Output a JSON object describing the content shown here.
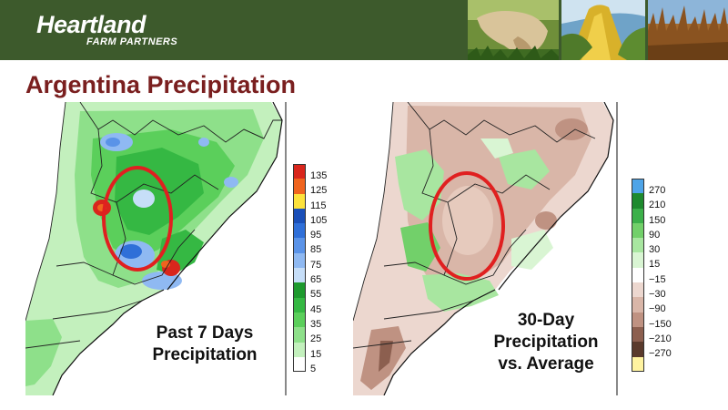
{
  "header": {
    "logo_main": "Heartland",
    "logo_sub": "FARM PARTNERS",
    "photos": [
      "cow-photo",
      "corn-photo",
      "soybean-photo"
    ]
  },
  "title": "Argentina Precipitation",
  "left_panel": {
    "caption_line1": "Past 7 Days",
    "caption_line2": "Precipitation",
    "legend": [
      {
        "label": "135",
        "color": "#d9261c"
      },
      {
        "label": "125",
        "color": "#f0641e"
      },
      {
        "label": "115",
        "color": "#fde23c"
      },
      {
        "label": "105",
        "color": "#1a4fb8"
      },
      {
        "label": "95",
        "color": "#2f6fd8"
      },
      {
        "label": "85",
        "color": "#5a93e8"
      },
      {
        "label": "75",
        "color": "#8fb9f2"
      },
      {
        "label": "65",
        "color": "#c6def8"
      },
      {
        "label": "55",
        "color": "#1e9a2e"
      },
      {
        "label": "45",
        "color": "#35b843"
      },
      {
        "label": "35",
        "color": "#5bcf5b"
      },
      {
        "label": "25",
        "color": "#8ee08a"
      },
      {
        "label": "15",
        "color": "#c3f0bd"
      },
      {
        "label": "5",
        "color": "#ffffff"
      }
    ]
  },
  "right_panel": {
    "caption_line1": "30-Day",
    "caption_line2": "Precipitation",
    "caption_line3": "vs. Average",
    "legend": [
      {
        "label": "270",
        "color": "#4ea4e8"
      },
      {
        "label": "210",
        "color": "#1e8a2e"
      },
      {
        "label": "150",
        "color": "#3cb04a"
      },
      {
        "label": "90",
        "color": "#72d06a"
      },
      {
        "label": "30",
        "color": "#a8e6a0"
      },
      {
        "label": "15",
        "color": "#d9f5d3"
      },
      {
        "label": "−15",
        "color": "#ffffff"
      },
      {
        "label": "−30",
        "color": "#ecd7cf"
      },
      {
        "label": "−90",
        "color": "#d9b6a8"
      },
      {
        "label": "−150",
        "color": "#bf9282"
      },
      {
        "label": "−210",
        "color": "#8c5f4f"
      },
      {
        "label": "−270",
        "color": "#5a3a2c"
      },
      {
        "label": "",
        "color": "#fff3a0"
      }
    ]
  }
}
